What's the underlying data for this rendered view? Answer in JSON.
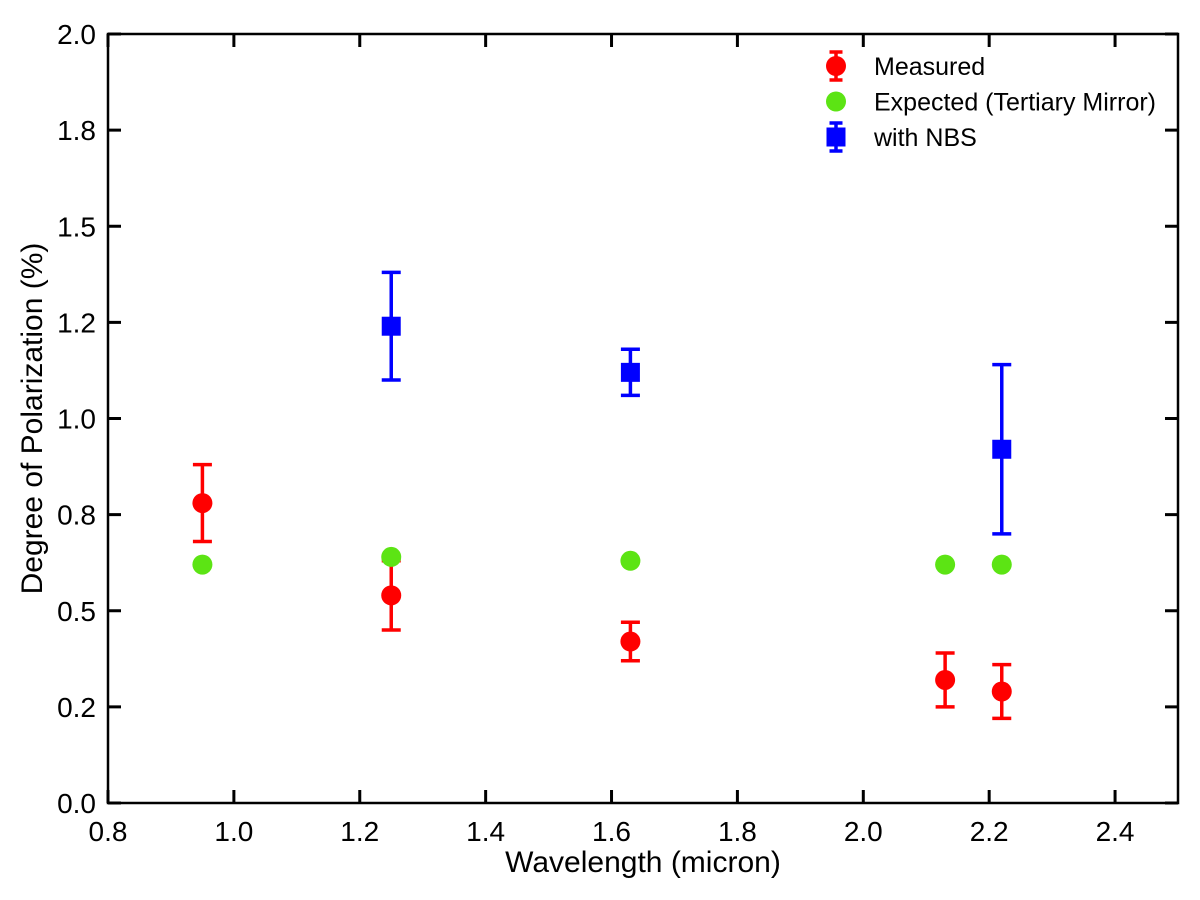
{
  "figure": {
    "background": "#ffffff",
    "frame_color": "#000000"
  },
  "chart_data": {
    "type": "scatter",
    "title": "",
    "xlabel": "Wavelength (micron)",
    "ylabel": "Degree of Polarization (%)",
    "xlim": [
      0.8,
      2.5
    ],
    "ylim": [
      0.0,
      2.0
    ],
    "grid": false,
    "x_ticks": {
      "values": [
        0.8,
        1.0,
        1.2,
        1.4,
        1.6,
        1.8,
        2.0,
        2.2,
        2.4
      ],
      "labels": [
        "0.8",
        "1.0",
        "1.2",
        "1.4",
        "1.6",
        "1.8",
        "2.0",
        "2.2",
        "2.4"
      ]
    },
    "y_ticks": {
      "values": [
        0.0,
        0.25,
        0.5,
        0.75,
        1.0,
        1.25,
        1.5,
        1.75,
        2.0
      ],
      "labels": [
        "0.0",
        "0.2",
        "0.5",
        "0.8",
        "1.0",
        "1.2",
        "1.5",
        "1.8",
        "2.0"
      ]
    },
    "legend": {
      "position": "upper-right",
      "entries": [
        "Measured",
        "Expected (Tertiary Mirror)",
        "with NBS"
      ]
    },
    "series": [
      {
        "name": "Measured",
        "marker": "circle",
        "color": "#ff0000",
        "has_error_bars": true,
        "points": [
          {
            "x": 0.95,
            "y": 0.78,
            "yerr": 0.1
          },
          {
            "x": 1.25,
            "y": 0.54,
            "yerr": 0.09
          },
          {
            "x": 1.63,
            "y": 0.42,
            "yerr": 0.05
          },
          {
            "x": 2.13,
            "y": 0.32,
            "yerr": 0.07
          },
          {
            "x": 2.22,
            "y": 0.29,
            "yerr": 0.07
          }
        ]
      },
      {
        "name": "Expected (Tertiary Mirror)",
        "marker": "circle",
        "color": "#5ce414",
        "has_error_bars": false,
        "points": [
          {
            "x": 0.95,
            "y": 0.62
          },
          {
            "x": 1.25,
            "y": 0.64
          },
          {
            "x": 1.63,
            "y": 0.63
          },
          {
            "x": 2.13,
            "y": 0.62
          },
          {
            "x": 2.22,
            "y": 0.62
          }
        ]
      },
      {
        "name": "with NBS",
        "marker": "square",
        "color": "#0000ff",
        "has_error_bars": true,
        "points": [
          {
            "x": 1.25,
            "y": 1.24,
            "yerr": 0.14
          },
          {
            "x": 1.63,
            "y": 1.12,
            "yerr": 0.06
          },
          {
            "x": 2.22,
            "y": 0.92,
            "yerr": 0.22
          }
        ]
      }
    ]
  }
}
